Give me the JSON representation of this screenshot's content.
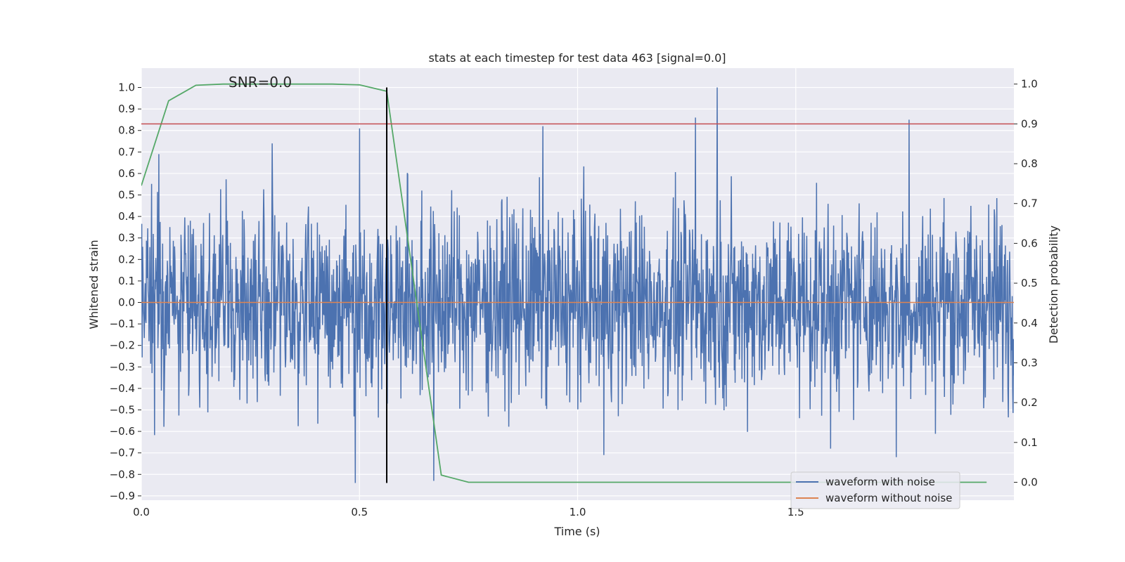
{
  "chart_data": {
    "type": "line",
    "title": "stats at each timestep for test data 463 [signal=0.0]",
    "xlabel": "Time (s)",
    "ylabel_left": "Whitened strain",
    "ylabel_right": "Detection probability",
    "xlim": [
      0.0,
      2.0
    ],
    "ylim_left": [
      -0.92,
      1.09
    ],
    "ylim_right": [
      -0.045,
      1.04
    ],
    "x_ticks": [
      "0.0",
      "0.5",
      "1.0",
      "1.5"
    ],
    "y_left_ticks": [
      "1.0",
      "0.9",
      "0.8",
      "0.7",
      "0.6",
      "0.5",
      "0.4",
      "0.3",
      "0.2",
      "0.1",
      "0.0",
      "−0.1",
      "−0.2",
      "−0.3",
      "−0.4",
      "−0.5",
      "−0.6",
      "−0.7",
      "−0.8",
      "−0.9"
    ],
    "y_right_ticks": [
      "1.0",
      "0.9",
      "0.8",
      "0.7",
      "0.6",
      "0.5",
      "0.4",
      "0.3",
      "0.2",
      "0.1",
      "0.0"
    ],
    "annotation": "SNR=0.0",
    "grid": true,
    "legend_position": "lower-right",
    "series": [
      {
        "name": "waveform with noise",
        "axis": "left",
        "color": "#4c72b0",
        "kind": "noise",
        "samples": 2048,
        "amplitude_range": [
          -0.84,
          1.0
        ],
        "notable_peaks": [
          {
            "x": 0.04,
            "y": 0.69
          },
          {
            "x": 0.3,
            "y": 0.74
          },
          {
            "x": 0.49,
            "y": -0.84
          },
          {
            "x": 0.5,
            "y": 0.81
          },
          {
            "x": 0.67,
            "y": -0.83
          },
          {
            "x": 0.92,
            "y": 0.82
          },
          {
            "x": 1.06,
            "y": -0.71
          },
          {
            "x": 1.27,
            "y": 0.86
          },
          {
            "x": 1.32,
            "y": 1.0
          },
          {
            "x": 1.58,
            "y": -0.68
          },
          {
            "x": 1.73,
            "y": -0.72
          },
          {
            "x": 1.76,
            "y": 0.85
          }
        ]
      },
      {
        "name": "waveform without noise",
        "axis": "left",
        "color": "#dd8452",
        "x": [
          0.0,
          2.0
        ],
        "y": [
          0.0,
          0.0
        ]
      },
      {
        "name": "",
        "axis": "right",
        "color": "#55a868",
        "x": [
          0.0,
          0.0625,
          0.125,
          0.1875,
          0.25,
          0.3125,
          0.375,
          0.4375,
          0.5,
          0.5625,
          0.625,
          0.6875,
          0.75,
          0.8125,
          0.875,
          0.9375,
          1.0,
          1.0625,
          1.125,
          1.1875,
          1.25,
          1.3125,
          1.375,
          1.4375,
          1.5,
          1.5625,
          1.625,
          1.6875,
          1.75,
          1.8125,
          1.875,
          1.9375
        ],
        "y": [
          0.745,
          0.958,
          0.997,
          1.0,
          1.0,
          1.0,
          1.0,
          1.0,
          0.998,
          0.982,
          0.5,
          0.018,
          0.0,
          0.0,
          0.0,
          0.0,
          0.0,
          0.0,
          0.0,
          0.0,
          0.0,
          0.0,
          0.0,
          0.0,
          0.0,
          0.0,
          0.0,
          0.0,
          0.0,
          0.0,
          0.0,
          0.0
        ]
      },
      {
        "name": "",
        "axis": "right",
        "color": "#c44e52",
        "kind": "threshold",
        "y": 0.9
      },
      {
        "name": "",
        "axis": "left",
        "color": "#000000",
        "kind": "marker",
        "x": 0.5625,
        "y_range": [
          -0.84,
          1.0
        ]
      }
    ]
  }
}
